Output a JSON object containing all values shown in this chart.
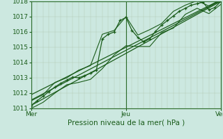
{
  "xlabel": "Pression niveau de la mer( hPa )",
  "ylim": [
    1011,
    1018
  ],
  "xlim": [
    0,
    96
  ],
  "xtick_positions": [
    0,
    48,
    96
  ],
  "xtick_labels": [
    "Mer",
    "Jeu",
    "Ven"
  ],
  "ytick_positions": [
    1011,
    1012,
    1013,
    1014,
    1015,
    1016,
    1017,
    1018
  ],
  "bg_color": "#cce8e0",
  "grid_color_v": "#b8d0b8",
  "grid_color_h": "#b8d0b8",
  "line_color": "#1a5c1a",
  "marker": "+",
  "marker_size": 3,
  "main_line": [
    [
      0,
      1011.2
    ],
    [
      3,
      1011.5
    ],
    [
      6,
      1011.8
    ],
    [
      9,
      1012.1
    ],
    [
      12,
      1012.4
    ],
    [
      15,
      1012.65
    ],
    [
      18,
      1012.85
    ],
    [
      21,
      1013.05
    ],
    [
      24,
      1013.0
    ],
    [
      27,
      1013.15
    ],
    [
      30,
      1013.3
    ],
    [
      33,
      1013.5
    ],
    [
      36,
      1015.55
    ],
    [
      39,
      1015.85
    ],
    [
      42,
      1016.0
    ],
    [
      45,
      1016.75
    ],
    [
      48,
      1016.95
    ],
    [
      51,
      1016.1
    ],
    [
      54,
      1015.65
    ],
    [
      57,
      1015.35
    ],
    [
      60,
      1015.55
    ],
    [
      63,
      1016.05
    ],
    [
      66,
      1016.45
    ],
    [
      69,
      1016.75
    ],
    [
      72,
      1017.05
    ],
    [
      75,
      1017.35
    ],
    [
      78,
      1017.55
    ],
    [
      81,
      1017.75
    ],
    [
      84,
      1017.85
    ],
    [
      87,
      1017.95
    ],
    [
      90,
      1017.45
    ],
    [
      93,
      1017.6
    ],
    [
      96,
      1018.0
    ]
  ],
  "upper_line": [
    [
      0,
      1011.5
    ],
    [
      6,
      1011.9
    ],
    [
      12,
      1012.7
    ],
    [
      18,
      1013.0
    ],
    [
      24,
      1013.5
    ],
    [
      30,
      1013.8
    ],
    [
      36,
      1015.85
    ],
    [
      42,
      1016.1
    ],
    [
      48,
      1017.0
    ],
    [
      54,
      1015.8
    ],
    [
      60,
      1016.15
    ],
    [
      66,
      1016.55
    ],
    [
      72,
      1017.35
    ],
    [
      78,
      1017.75
    ],
    [
      84,
      1018.05
    ],
    [
      90,
      1017.7
    ],
    [
      96,
      1018.1
    ]
  ],
  "lower_line": [
    [
      0,
      1011.0
    ],
    [
      6,
      1011.4
    ],
    [
      12,
      1012.0
    ],
    [
      18,
      1012.55
    ],
    [
      24,
      1012.7
    ],
    [
      30,
      1012.9
    ],
    [
      36,
      1013.6
    ],
    [
      42,
      1014.5
    ],
    [
      48,
      1015.1
    ],
    [
      54,
      1015.05
    ],
    [
      60,
      1015.05
    ],
    [
      66,
      1015.95
    ],
    [
      72,
      1016.25
    ],
    [
      78,
      1017.15
    ],
    [
      84,
      1017.55
    ],
    [
      90,
      1017.2
    ],
    [
      96,
      1017.8
    ]
  ],
  "trend_line1": [
    [
      0,
      1011.2
    ],
    [
      96,
      1018.0
    ]
  ],
  "trend_line2": [
    [
      0,
      1011.55
    ],
    [
      96,
      1018.05
    ]
  ],
  "trend_line3": [
    [
      0,
      1011.9
    ],
    [
      96,
      1018.1
    ]
  ]
}
